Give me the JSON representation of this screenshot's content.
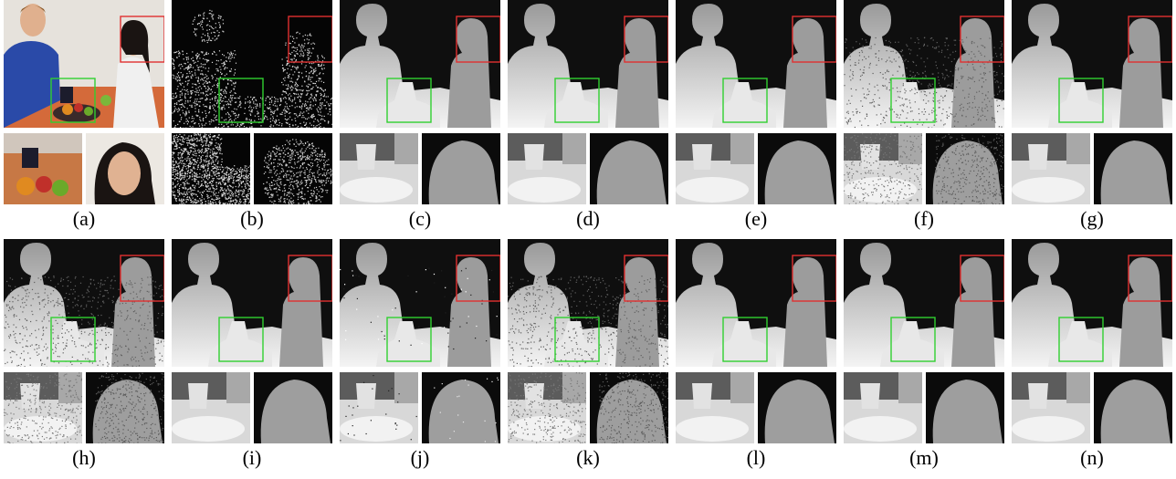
{
  "figure": {
    "panels": [
      {
        "id": "a",
        "kind": "color",
        "caption": "(a)"
      },
      {
        "id": "b",
        "kind": "sparse",
        "caption": "(b)"
      },
      {
        "id": "c",
        "kind": "depth",
        "caption": "(c)"
      },
      {
        "id": "d",
        "kind": "depth",
        "caption": "(d)"
      },
      {
        "id": "e",
        "kind": "depth",
        "caption": "(e)"
      },
      {
        "id": "f",
        "kind": "depth-noisy",
        "caption": "(f)"
      },
      {
        "id": "g",
        "kind": "depth",
        "caption": "(g)"
      },
      {
        "id": "h",
        "kind": "depth-noisy",
        "caption": "(h)"
      },
      {
        "id": "i",
        "kind": "depth",
        "caption": "(i)"
      },
      {
        "id": "j",
        "kind": "depth-artifact",
        "caption": "(j)"
      },
      {
        "id": "k",
        "kind": "depth-noisy",
        "caption": "(k)"
      },
      {
        "id": "l",
        "kind": "depth",
        "caption": "(l)"
      },
      {
        "id": "m",
        "kind": "depth",
        "caption": "(m)"
      },
      {
        "id": "n",
        "kind": "depth",
        "caption": "(n)"
      }
    ],
    "highlight_colors": {
      "region_1": "#e03030",
      "region_2": "#30d030"
    }
  }
}
